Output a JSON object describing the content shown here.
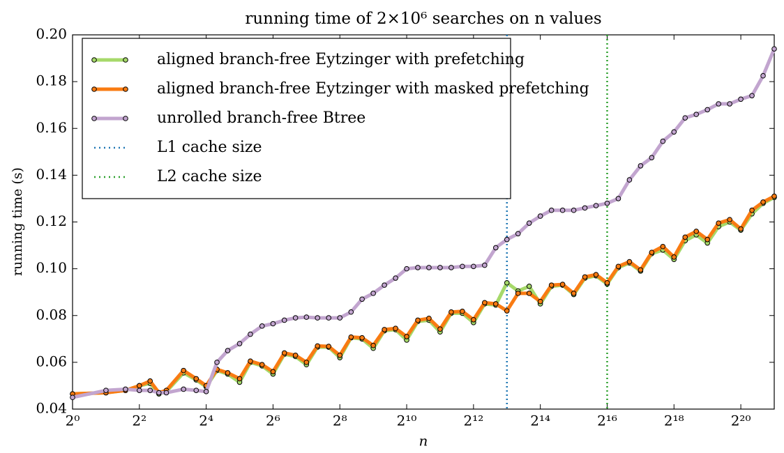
{
  "chart_data": {
    "type": "line",
    "title": "running time of 2×10⁶ searches on n values",
    "xlabel": "n",
    "ylabel": "running time (s)",
    "xscale": "log2",
    "xlim": [
      1,
      2097152
    ],
    "xticks": [
      {
        "value": 1,
        "label": "2⁰"
      },
      {
        "value": 4,
        "label": "2²"
      },
      {
        "value": 16,
        "label": "2⁴"
      },
      {
        "value": 64,
        "label": "2⁶"
      },
      {
        "value": 256,
        "label": "2⁸"
      },
      {
        "value": 1024,
        "label": "2¹⁰"
      },
      {
        "value": 4096,
        "label": "2¹²"
      },
      {
        "value": 16384,
        "label": "2¹⁴"
      },
      {
        "value": 65536,
        "label": "2¹⁶"
      },
      {
        "value": 262144,
        "label": "2¹⁸"
      },
      {
        "value": 1048576,
        "label": "2²⁰"
      }
    ],
    "ylim": [
      0.04,
      0.2
    ],
    "yticks": [
      0.04,
      0.06,
      0.08,
      {
        "value": 0.1,
        "label": "0.10"
      },
      0.12,
      0.14,
      0.16,
      0.18,
      {
        "value": 0.2,
        "label": "0.20"
      }
    ],
    "legend": "upper left",
    "x": [
      1,
      2,
      3,
      4,
      5,
      6,
      7,
      10,
      13,
      16,
      20,
      25,
      32,
      40,
      51,
      64,
      81,
      102,
      128,
      161,
      203,
      256,
      323,
      406,
      512,
      645,
      813,
      1024,
      1290,
      1625,
      2048,
      2580,
      3251,
      4096,
      5161,
      6502,
      8192,
      10321,
      13004,
      16384,
      20643,
      26008,
      32768,
      41285,
      52016,
      65536,
      82570,
      104032,
      131072,
      165140,
      208064,
      262144,
      330281,
      416128,
      524288,
      660561,
      832255,
      1048576,
      1321122,
      1664510,
      2097152
    ],
    "series": [
      {
        "name": "aligned branch-free Eytzinger with prefetching",
        "color": "#a6d96a",
        "values": [
          0.0465,
          0.047,
          0.048,
          0.05,
          0.051,
          0.0465,
          0.0475,
          0.0555,
          0.0525,
          0.0495,
          0.0565,
          0.055,
          0.0515,
          0.06,
          0.0585,
          0.055,
          0.0635,
          0.0625,
          0.059,
          0.0665,
          0.0665,
          0.062,
          0.0705,
          0.07,
          0.066,
          0.0735,
          0.074,
          0.0695,
          0.0775,
          0.078,
          0.073,
          0.081,
          0.081,
          0.077,
          0.085,
          0.0845,
          0.094,
          0.0905,
          0.0925,
          0.085,
          0.0925,
          0.093,
          0.089,
          0.096,
          0.097,
          0.0935,
          0.1005,
          0.1025,
          0.099,
          0.1065,
          0.108,
          0.104,
          0.112,
          0.1145,
          0.111,
          0.118,
          0.12,
          0.1165,
          0.1235,
          0.128,
          0.1305
        ]
      },
      {
        "name": "aligned branch-free Eytzinger with masked prefetching",
        "color": "#f97b12",
        "values": [
          0.0465,
          0.047,
          0.048,
          0.05,
          0.052,
          0.047,
          0.048,
          0.0565,
          0.053,
          0.05,
          0.057,
          0.0555,
          0.053,
          0.0605,
          0.059,
          0.056,
          0.064,
          0.063,
          0.06,
          0.067,
          0.0668,
          0.063,
          0.0708,
          0.0705,
          0.0672,
          0.074,
          0.0745,
          0.071,
          0.078,
          0.0788,
          0.0742,
          0.0815,
          0.0818,
          0.0782,
          0.0855,
          0.085,
          0.082,
          0.0895,
          0.0895,
          0.086,
          0.093,
          0.0933,
          0.0895,
          0.0965,
          0.0975,
          0.094,
          0.101,
          0.103,
          0.0995,
          0.107,
          0.1095,
          0.105,
          0.1135,
          0.116,
          0.1125,
          0.1195,
          0.121,
          0.117,
          0.125,
          0.1285,
          0.131
        ]
      },
      {
        "name": "unrolled branch-free Btree",
        "color": "#c2a5cf",
        "values": [
          0.045,
          0.048,
          0.0485,
          0.048,
          0.048,
          0.047,
          0.047,
          0.0485,
          0.048,
          0.0475,
          0.06,
          0.065,
          0.068,
          0.072,
          0.0755,
          0.0765,
          0.078,
          0.079,
          0.0793,
          0.079,
          0.079,
          0.079,
          0.0815,
          0.087,
          0.0895,
          0.093,
          0.096,
          0.1,
          0.1005,
          0.1005,
          0.1005,
          0.1005,
          0.101,
          0.101,
          0.1015,
          0.109,
          0.1125,
          0.115,
          0.1195,
          0.1225,
          0.125,
          0.125,
          0.125,
          0.126,
          0.127,
          0.128,
          0.13,
          0.138,
          0.144,
          0.1475,
          0.1545,
          0.1585,
          0.1645,
          0.166,
          0.168,
          0.1705,
          0.1705,
          0.1725,
          0.174,
          0.1825,
          0.194
        ]
      }
    ],
    "vlines": [
      {
        "name": "L1 cache size",
        "color": "#1f77b4",
        "x": 8192
      },
      {
        "name": "L2 cache size",
        "color": "#2ca02c",
        "x": 65536
      }
    ]
  }
}
